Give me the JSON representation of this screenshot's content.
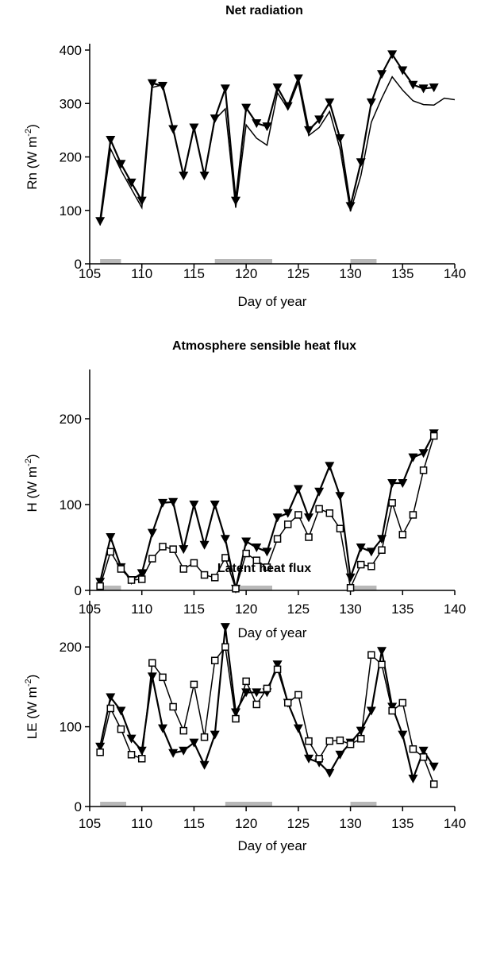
{
  "chart_data": [
    {
      "type": "line",
      "title": "Net radiation",
      "xlabel": "Day of year",
      "ylabel": [
        "Rn (W m",
        "-2",
        ")"
      ],
      "xlim": [
        105,
        140
      ],
      "xticks": [
        105,
        110,
        115,
        120,
        125,
        130,
        135,
        140
      ],
      "ylim": [
        0,
        400
      ],
      "yticks": [
        0,
        100,
        200,
        300,
        400
      ],
      "bands": [
        [
          106,
          108
        ],
        [
          117,
          122.5
        ],
        [
          130,
          132.5
        ]
      ],
      "band_color": "#b8b8b8",
      "x": [
        106,
        107,
        108,
        109,
        110,
        111,
        112,
        113,
        114,
        115,
        116,
        117,
        118,
        119,
        120,
        121,
        122,
        123,
        124,
        125,
        126,
        127,
        128,
        129,
        130,
        131,
        132,
        133,
        134,
        135,
        136,
        137,
        138,
        139,
        140
      ],
      "series": [
        {
          "color": "#000000",
          "marker": "triangle",
          "values": [
            80,
            232,
            187,
            152,
            118,
            338,
            333,
            252,
            165,
            255,
            165,
            272,
            328,
            118,
            292,
            263,
            257,
            330,
            295,
            347,
            250,
            270,
            302,
            235,
            108,
            190,
            302,
            355,
            392,
            362,
            335,
            328,
            330,
            null,
            null
          ]
        },
        {
          "color": "#000000",
          "marker": "none",
          "values": [
            72,
            215,
            175,
            140,
            105,
            330,
            335,
            252,
            165,
            255,
            165,
            270,
            290,
            105,
            260,
            235,
            222,
            320,
            290,
            340,
            240,
            255,
            285,
            215,
            98,
            165,
            265,
            310,
            350,
            325,
            305,
            298,
            297,
            310,
            307
          ]
        }
      ]
    },
    {
      "type": "line",
      "title": "Atmosphere sensible heat flux",
      "xlabel": "Day of year",
      "ylabel": [
        "H (W m",
        "-2",
        ")"
      ],
      "xlim": [
        105,
        140
      ],
      "xticks": [
        105,
        110,
        115,
        120,
        125,
        130,
        135,
        140
      ],
      "ylim": [
        0,
        250
      ],
      "yticks": [
        0,
        100,
        200
      ],
      "bands": [
        [
          106,
          108
        ],
        [
          119,
          122.5
        ],
        [
          130,
          132.5
        ]
      ],
      "band_color": "#b8b8b8",
      "x": [
        106,
        107,
        108,
        109,
        110,
        111,
        112,
        113,
        114,
        115,
        116,
        117,
        118,
        119,
        120,
        121,
        122,
        123,
        124,
        125,
        126,
        127,
        128,
        129,
        130,
        131,
        132,
        133,
        134,
        135,
        136,
        137,
        138
      ],
      "series": [
        {
          "color": "#000000",
          "marker": "triangle",
          "values": [
            10,
            62,
            27,
            12,
            20,
            67,
            102,
            103,
            48,
            100,
            53,
            100,
            60,
            2,
            57,
            50,
            45,
            85,
            90,
            118,
            85,
            115,
            145,
            110,
            15,
            50,
            45,
            60,
            125,
            125,
            155,
            160,
            183
          ]
        },
        {
          "color": "#000000",
          "marker": "square",
          "values": [
            5,
            45,
            25,
            12,
            13,
            37,
            51,
            48,
            25,
            32,
            18,
            15,
            38,
            2,
            43,
            35,
            27,
            60,
            77,
            88,
            62,
            95,
            90,
            72,
            3,
            30,
            28,
            47,
            102,
            65,
            88,
            140,
            180
          ]
        }
      ]
    },
    {
      "type": "line",
      "title": "Latent heat flux",
      "xlabel": "Day of year",
      "ylabel": [
        "LE (W m",
        "-2",
        ")"
      ],
      "xlim": [
        105,
        140
      ],
      "xticks": [
        105,
        110,
        115,
        120,
        125,
        130,
        135,
        140
      ],
      "ylim": [
        0,
        250
      ],
      "yticks": [
        0,
        100,
        200
      ],
      "bands": [
        [
          106,
          108.5
        ],
        [
          118,
          122.5
        ],
        [
          130,
          132.5
        ]
      ],
      "band_color": "#b8b8b8",
      "x": [
        106,
        107,
        108,
        109,
        110,
        111,
        112,
        113,
        114,
        115,
        116,
        117,
        118,
        119,
        120,
        121,
        122,
        123,
        124,
        125,
        126,
        127,
        128,
        129,
        130,
        131,
        132,
        133,
        134,
        135,
        136,
        137,
        138
      ],
      "series": [
        {
          "color": "#000000",
          "marker": "triangle",
          "values": [
            75,
            137,
            120,
            85,
            70,
            163,
            98,
            67,
            70,
            80,
            52,
            90,
            225,
            118,
            143,
            143,
            143,
            178,
            130,
            98,
            60,
            55,
            42,
            65,
            80,
            95,
            120,
            195,
            125,
            90,
            35,
            70,
            50
          ]
        },
        {
          "color": "#000000",
          "marker": "square",
          "values": [
            68,
            123,
            97,
            65,
            60,
            180,
            162,
            125,
            95,
            153,
            87,
            183,
            200,
            110,
            157,
            128,
            148,
            172,
            130,
            140,
            82,
            60,
            82,
            83,
            78,
            85,
            190,
            178,
            120,
            130,
            72,
            62,
            28
          ]
        }
      ]
    }
  ]
}
